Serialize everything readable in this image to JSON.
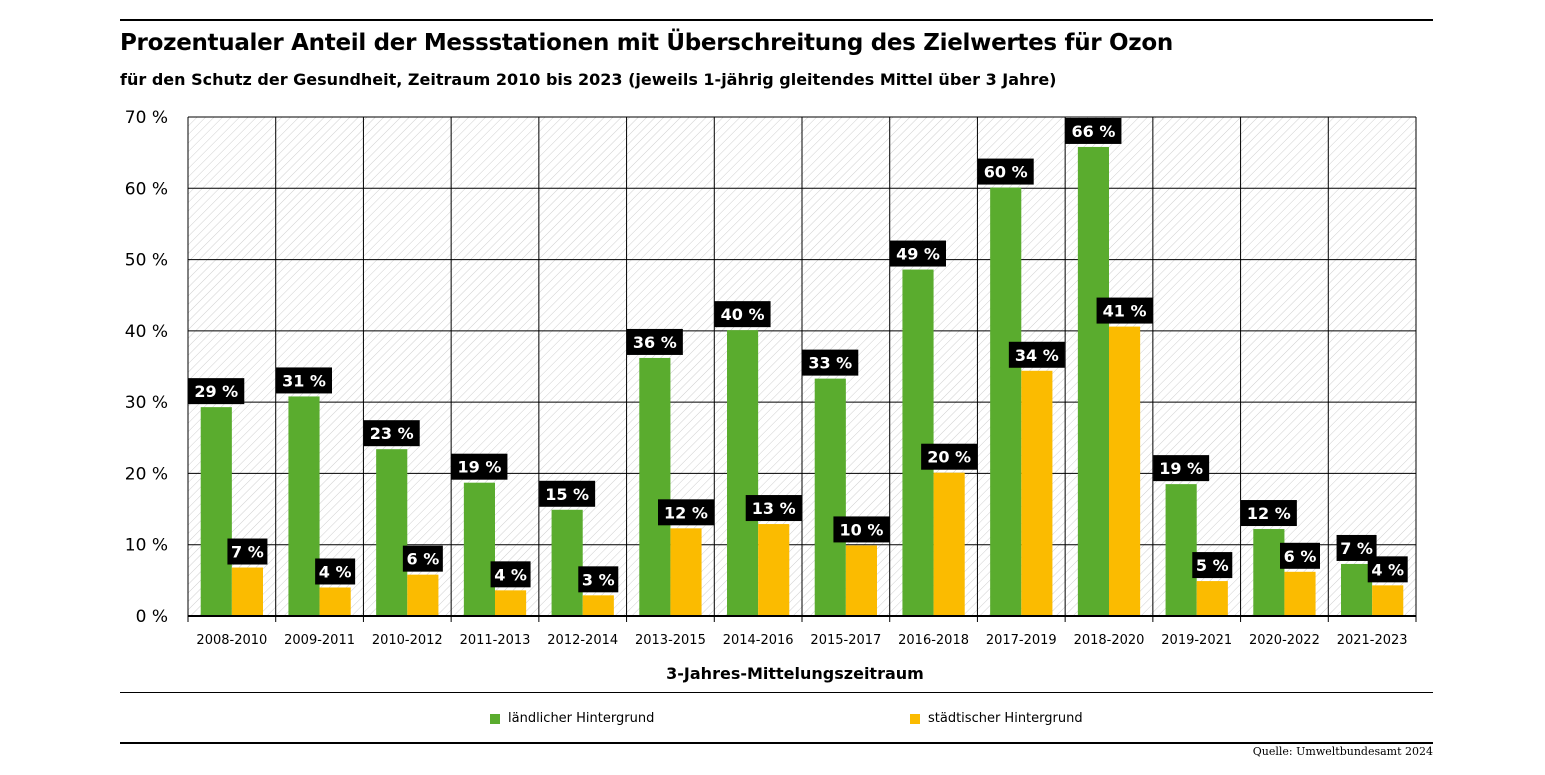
{
  "title": "Prozentualer Anteil der Messstationen mit Überschreitung des Zielwertes für Ozon",
  "subtitle": "für den Schutz der Gesundheit, Zeitraum 2010 bis 2023 (jeweils 1-jährig gleitendes Mittel über 3 Jahre)",
  "source": "Quelle: Umweltbundesamt 2024",
  "colors": {
    "rural": "#5aac2e",
    "urban": "#fbbb00",
    "label_bg": "#000000",
    "label_text": "#ffffff"
  },
  "chart_data": {
    "type": "bar",
    "title": "Prozentualer Anteil der Messstationen mit Überschreitung des Zielwertes für Ozon",
    "subtitle": "für den Schutz der Gesundheit, Zeitraum 2010 bis 2023 (jeweils 1-jährig gleitendes Mittel über 3 Jahre)",
    "xlabel": "3-Jahres-Mittelungszeitraum",
    "ylabel": "",
    "ylim": [
      0,
      70
    ],
    "yticks": [
      0,
      10,
      20,
      30,
      40,
      50,
      60,
      70
    ],
    "ytick_labels": [
      "0 %",
      "10 %",
      "20 %",
      "30 %",
      "40 %",
      "50 %",
      "60 %",
      "70 %"
    ],
    "grid": true,
    "legend_position": "bottom",
    "categories": [
      "2008-2010",
      "2009-2011",
      "2010-2012",
      "2011-2013",
      "2012-2014",
      "2013-2015",
      "2014-2016",
      "2015-2017",
      "2016-2018",
      "2017-2019",
      "2018-2020",
      "2019-2021",
      "2020-2022",
      "2021-2023"
    ],
    "series": [
      {
        "name": "ländlicher Hintergrund",
        "color": "#5aac2e",
        "values": [
          29.3,
          30.8,
          23.4,
          18.7,
          14.9,
          36.2,
          40.1,
          33.3,
          48.6,
          60.1,
          65.8,
          18.5,
          12.2,
          7.3
        ],
        "labels": [
          "29 %",
          "31 %",
          "23 %",
          "19 %",
          "15 %",
          "36 %",
          "40 %",
          "33 %",
          "49 %",
          "60 %",
          "66 %",
          "19 %",
          "12 %",
          "7 %"
        ]
      },
      {
        "name": "städtischer Hintergrund",
        "color": "#fbbb00",
        "values": [
          6.8,
          4.0,
          5.8,
          3.6,
          2.9,
          12.3,
          12.9,
          9.9,
          20.1,
          34.4,
          40.6,
          4.9,
          6.2,
          4.3
        ],
        "labels": [
          "7 %",
          "4 %",
          "6 %",
          "4 %",
          "3 %",
          "12 %",
          "13 %",
          "10 %",
          "20 %",
          "34 %",
          "41 %",
          "5 %",
          "6 %",
          "4 %"
        ]
      }
    ]
  }
}
